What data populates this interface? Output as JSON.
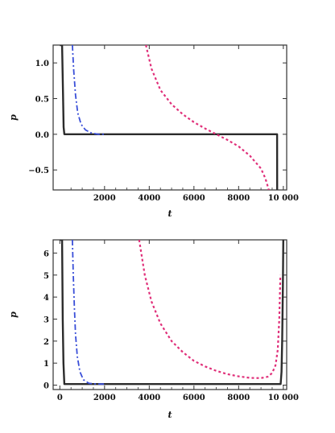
{
  "chart_data": [
    {
      "type": "line",
      "xlabel": "t",
      "ylabel": "p",
      "xlim": [
        -300,
        10150
      ],
      "ylim": [
        -0.78,
        1.25
      ],
      "x_ticks": [
        2000,
        4000,
        6000,
        8000,
        10000
      ],
      "x_tick_labels": [
        "2000",
        "4000",
        "6000",
        "8000",
        "10 000"
      ],
      "y_ticks": [
        -0.5,
        0.0,
        0.5,
        1.0
      ],
      "y_tick_labels": [
        "−0.5",
        "0.0",
        "0.5",
        "1.0"
      ],
      "series": [
        {
          "style": "solid",
          "color": "#2b2b2b",
          "x": [
            0,
            100,
            140,
            170,
            200,
            500,
            2000,
            5000,
            9700,
            9720,
            9725
          ],
          "y": [
            1.25,
            1.25,
            0.6,
            0.1,
            0.0,
            0.0,
            0.0,
            0.0,
            0.0,
            0.0,
            -0.78
          ]
        },
        {
          "style": "dashdot",
          "color": "#3a4fd8",
          "x": [
            560,
            620,
            700,
            800,
            950,
            1150,
            1400,
            1700,
            2000
          ],
          "y": [
            1.25,
            0.9,
            0.55,
            0.3,
            0.14,
            0.06,
            0.02,
            0.0,
            0.0
          ]
        },
        {
          "style": "dotted",
          "color": "#e0307a",
          "x": [
            3850,
            4100,
            4500,
            5000,
            5500,
            6000,
            6500,
            7000,
            7500,
            8000,
            8500,
            9000,
            9200,
            9350
          ],
          "y": [
            1.25,
            0.92,
            0.62,
            0.42,
            0.28,
            0.17,
            0.08,
            0.0,
            -0.08,
            -0.17,
            -0.3,
            -0.48,
            -0.62,
            -0.78
          ]
        }
      ]
    },
    {
      "type": "line",
      "xlabel": "t",
      "ylabel": "p",
      "xlim": [
        -300,
        10150
      ],
      "ylim": [
        -0.2,
        6.6
      ],
      "x_ticks": [
        0,
        2000,
        4000,
        6000,
        8000,
        10000
      ],
      "x_tick_labels": [
        "0",
        "2000",
        "4000",
        "6000",
        "8000",
        "10 000"
      ],
      "y_ticks": [
        0,
        1,
        2,
        3,
        4,
        5,
        6
      ],
      "y_tick_labels": [
        "0",
        "1",
        "2",
        "3",
        "4",
        "5",
        "6"
      ],
      "series": [
        {
          "style": "solid",
          "color": "#2b2b2b",
          "x": [
            0,
            100,
            130,
            160,
            200,
            500,
            2000,
            5000,
            9000,
            9880,
            9920,
            9950,
            9980,
            10000
          ],
          "y": [
            6.6,
            6.6,
            3.0,
            1.0,
            0.05,
            0.05,
            0.05,
            0.05,
            0.05,
            0.05,
            0.6,
            2.0,
            4.5,
            6.6
          ]
        },
        {
          "style": "dashdot",
          "color": "#3a4fd8",
          "x": [
            560,
            600,
            650,
            700,
            780,
            900,
            1050,
            1300,
            1700,
            2000
          ],
          "y": [
            6.6,
            5.0,
            3.5,
            2.3,
            1.3,
            0.6,
            0.25,
            0.08,
            0.05,
            0.05
          ]
        },
        {
          "style": "dotted",
          "color": "#e0307a",
          "x": [
            3550,
            3800,
            4100,
            4500,
            5000,
            5500,
            6000,
            6500,
            7000,
            7500,
            8000,
            8500,
            9000,
            9300,
            9500,
            9650,
            9750,
            9820,
            9870
          ],
          "y": [
            6.6,
            5.0,
            3.8,
            2.8,
            2.0,
            1.5,
            1.1,
            0.85,
            0.65,
            0.5,
            0.4,
            0.33,
            0.32,
            0.38,
            0.55,
            0.9,
            1.6,
            3.0,
            5.0
          ]
        }
      ]
    }
  ]
}
